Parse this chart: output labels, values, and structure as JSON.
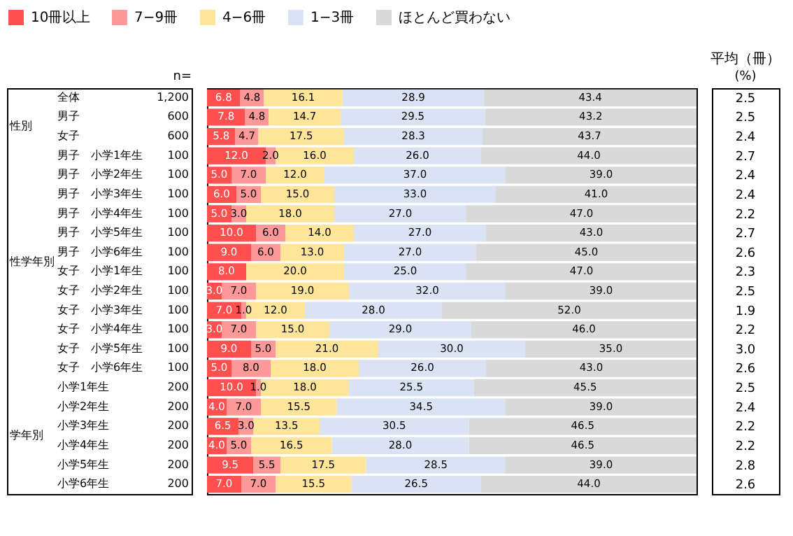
{
  "chart_data": {
    "type": "bar",
    "orientation": "horizontal",
    "stacked": true,
    "legend": "top",
    "tick_labels": false,
    "xlim": [
      0,
      100
    ],
    "categories": [
      "全体",
      "男子",
      "女子",
      "男子　小学1年生",
      "男子　小学2年生",
      "男子　小学3年生",
      "男子　小学4年生",
      "男子　小学5年生",
      "男子　小学6年生",
      "女子　小学1年生",
      "女子　小学2年生",
      "女子　小学3年生",
      "女子　小学4年生",
      "女子　小学5年生",
      "女子　小学6年生",
      "小学1年生",
      "小学2年生",
      "小学3年生",
      "小学4年生",
      "小学5年生",
      "小学6年生"
    ],
    "series": [
      {
        "name": "10冊以上",
        "color": "#ff4f4f",
        "values": [
          6.8,
          7.8,
          5.8,
          12.0,
          5.0,
          6.0,
          5.0,
          10.0,
          9.0,
          8.0,
          3.0,
          7.0,
          3.0,
          9.0,
          5.0,
          10.0,
          4.0,
          6.5,
          4.0,
          9.5,
          7.0
        ],
        "value_labels": [
          "6.8",
          "7.8",
          "5.8",
          "12.0",
          "5.0",
          "6.0",
          "5.0",
          "10.0",
          "9.0",
          "8.0",
          "3.0",
          "7.0",
          "3.0",
          "9.0",
          "5.0",
          "10.0",
          "4.0",
          "6.5",
          "4.0",
          "9.5",
          "7.0"
        ]
      },
      {
        "name": "7−9冊",
        "color": "#ff9999",
        "values": [
          4.8,
          4.8,
          4.7,
          2.0,
          7.0,
          5.0,
          3.0,
          6.0,
          6.0,
          0.0,
          7.0,
          1.0,
          7.0,
          5.0,
          8.0,
          1.0,
          7.0,
          3.0,
          5.0,
          5.5,
          7.0
        ],
        "value_labels": [
          "4.8",
          "4.8",
          "4.7",
          "2.0",
          "7.0",
          "5.0",
          "3.0",
          "6.0",
          "6.0",
          null,
          "7.0",
          "1.0",
          "7.0",
          "5.0",
          "8.0",
          "1.0",
          "7.0",
          "3.0",
          "5.0",
          "5.5",
          "7.0"
        ]
      },
      {
        "name": "4−6冊",
        "color": "#ffe599",
        "values": [
          16.1,
          14.7,
          17.5,
          16.0,
          12.0,
          15.0,
          18.0,
          14.0,
          13.0,
          20.0,
          19.0,
          12.0,
          15.0,
          21.0,
          18.0,
          18.0,
          15.5,
          13.5,
          16.5,
          17.5,
          15.5
        ],
        "value_labels": [
          "16.1",
          "14.7",
          "17.5",
          "16.0",
          "12.0",
          "15.0",
          "18.0",
          "14.0",
          "13.0",
          "20.0",
          "19.0",
          "12.0",
          "15.0",
          "21.0",
          "18.0",
          "18.0",
          "15.5",
          "13.5",
          "16.5",
          "17.5",
          "15.5"
        ]
      },
      {
        "name": "1−3冊",
        "color": "#dae3f3",
        "values": [
          28.9,
          29.5,
          28.3,
          26.0,
          37.0,
          33.0,
          27.0,
          27.0,
          27.0,
          25.0,
          32.0,
          28.0,
          29.0,
          30.0,
          26.0,
          25.5,
          34.5,
          30.5,
          28.0,
          28.5,
          26.5
        ],
        "value_labels": [
          "28.9",
          "29.5",
          "28.3",
          "26.0",
          "37.0",
          "33.0",
          "27.0",
          "27.0",
          "27.0",
          "25.0",
          "32.0",
          "28.0",
          "29.0",
          "30.0",
          "26.0",
          "25.5",
          "34.5",
          "30.5",
          "28.0",
          "28.5",
          "26.5"
        ]
      },
      {
        "name": "ほとんど買わない",
        "color": "#d9d9d9",
        "values": [
          43.4,
          43.2,
          43.7,
          44.0,
          39.0,
          41.0,
          47.0,
          43.0,
          45.0,
          47.0,
          39.0,
          52.0,
          46.0,
          35.0,
          43.0,
          45.5,
          39.0,
          46.5,
          46.5,
          39.0,
          44.0
        ],
        "value_labels": [
          "43.4",
          "43.2",
          "43.7",
          "44.0",
          "39.0",
          "41.0",
          "47.0",
          "43.0",
          "45.0",
          "47.0",
          "39.0",
          "52.0",
          "46.0",
          "35.0",
          "43.0",
          "45.5",
          "39.0",
          "46.5",
          "46.5",
          "39.0",
          "44.0"
        ]
      }
    ],
    "annotations": [
      "(%)",
      "n=",
      "平均（冊）",
      "性別",
      "性学年別",
      "学年別",
      "1,200",
      "600",
      "600",
      "100",
      "100",
      "100",
      "100",
      "100",
      "100",
      "100",
      "100",
      "100",
      "100",
      "100",
      "100",
      "200",
      "200",
      "200",
      "200",
      "200",
      "200",
      "2.5",
      "2.5",
      "2.4",
      "2.7",
      "2.4",
      "2.4",
      "2.2",
      "2.7",
      "2.6",
      "2.3",
      "2.5",
      "1.9",
      "2.2",
      "3.0",
      "2.6",
      "2.5",
      "2.4",
      "2.2",
      "2.2",
      "2.8",
      "2.6"
    ]
  }
}
